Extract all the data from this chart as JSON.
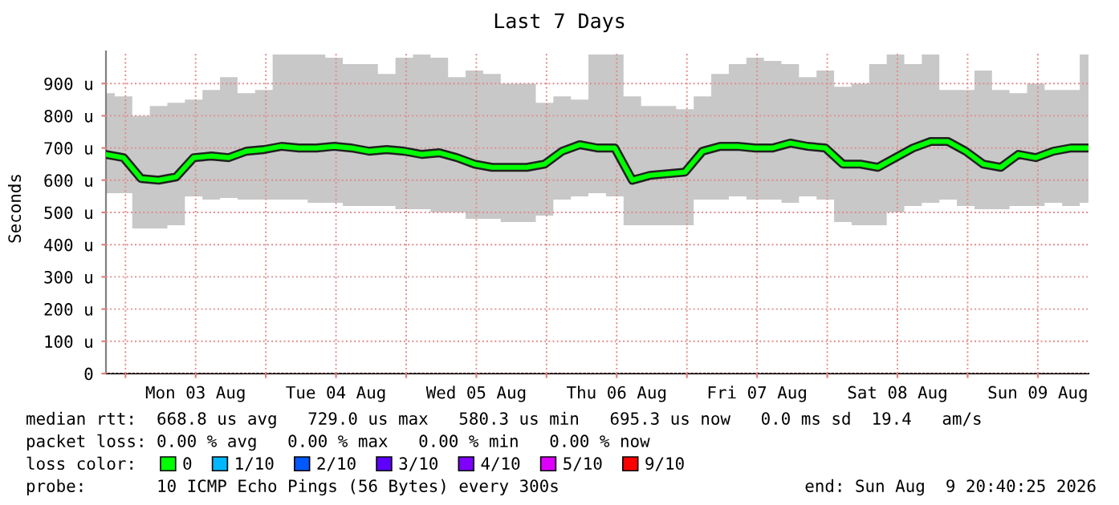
{
  "chart_data": {
    "type": "line",
    "title": "Last 7 Days",
    "ylabel": "Seconds",
    "x": [
      "2026-08-02T20:40",
      "2026-08-02T23:40",
      "2026-08-03T02:40",
      "2026-08-03T05:40",
      "2026-08-03T08:40",
      "2026-08-03T11:40",
      "2026-08-03T14:40",
      "2026-08-03T17:40",
      "2026-08-03T20:40",
      "2026-08-03T23:40",
      "2026-08-04T02:40",
      "2026-08-04T05:40",
      "2026-08-04T08:40",
      "2026-08-04T11:40",
      "2026-08-04T14:40",
      "2026-08-04T17:40",
      "2026-08-04T20:40",
      "2026-08-04T23:40",
      "2026-08-05T02:40",
      "2026-08-05T05:40",
      "2026-08-05T08:40",
      "2026-08-05T11:40",
      "2026-08-05T14:40",
      "2026-08-05T17:40",
      "2026-08-05T20:40",
      "2026-08-05T23:40",
      "2026-08-06T02:40",
      "2026-08-06T05:40",
      "2026-08-06T08:40",
      "2026-08-06T11:40",
      "2026-08-06T14:40",
      "2026-08-06T17:40",
      "2026-08-06T20:40",
      "2026-08-06T23:40",
      "2026-08-07T02:40",
      "2026-08-07T05:40",
      "2026-08-07T08:40",
      "2026-08-07T11:40",
      "2026-08-07T14:40",
      "2026-08-07T17:40",
      "2026-08-07T20:40",
      "2026-08-07T23:40",
      "2026-08-08T02:40",
      "2026-08-08T05:40",
      "2026-08-08T08:40",
      "2026-08-08T11:40",
      "2026-08-08T14:40",
      "2026-08-08T17:40",
      "2026-08-08T20:40",
      "2026-08-08T23:40",
      "2026-08-09T02:40",
      "2026-08-09T05:40",
      "2026-08-09T08:40",
      "2026-08-09T11:40",
      "2026-08-09T14:40",
      "2026-08-09T17:40",
      "2026-08-09T20:40"
    ],
    "series": [
      {
        "name": "0",
        "color": "#00ff00",
        "values": [
          680,
          670,
          605,
          600,
          610,
          670,
          675,
          670,
          690,
          695,
          705,
          700,
          700,
          705,
          700,
          690,
          695,
          690,
          680,
          685,
          670,
          650,
          640,
          640,
          640,
          650,
          690,
          710,
          700,
          700,
          600,
          615,
          620,
          625,
          690,
          705,
          705,
          700,
          700,
          715,
          705,
          700,
          650,
          650,
          640,
          670,
          700,
          720,
          720,
          690,
          650,
          640,
          680,
          670,
          690,
          700,
          700
        ],
        "upper": [
          870,
          860,
          800,
          830,
          840,
          850,
          880,
          920,
          870,
          880,
          990,
          990,
          990,
          980,
          960,
          960,
          930,
          980,
          990,
          980,
          920,
          940,
          930,
          900,
          900,
          840,
          860,
          850,
          990,
          990,
          860,
          830,
          830,
          820,
          860,
          930,
          960,
          980,
          970,
          960,
          920,
          940,
          890,
          900,
          960,
          990,
          960,
          990,
          880,
          880,
          940,
          880,
          870,
          900,
          880,
          880,
          990
        ],
        "lower": [
          560,
          560,
          450,
          450,
          460,
          550,
          540,
          545,
          540,
          540,
          540,
          540,
          530,
          530,
          520,
          520,
          520,
          510,
          510,
          500,
          500,
          480,
          480,
          470,
          470,
          490,
          540,
          550,
          560,
          550,
          460,
          460,
          460,
          460,
          540,
          540,
          550,
          540,
          540,
          530,
          550,
          540,
          470,
          460,
          460,
          500,
          520,
          530,
          540,
          520,
          510,
          510,
          520,
          520,
          530,
          520,
          530
        ]
      },
      {
        "name": "1/10",
        "color": "#00b8ff",
        "values": [
          null,
          null,
          null,
          null,
          null,
          null,
          null,
          null,
          null,
          null,
          null,
          null,
          null,
          null,
          null,
          null,
          null,
          null,
          null,
          null,
          null,
          null,
          null,
          null,
          null,
          null,
          null,
          null,
          null,
          null,
          null,
          null,
          null,
          null,
          null,
          null,
          null,
          null,
          null,
          null,
          null,
          null,
          null,
          null,
          null,
          null,
          null,
          null,
          null,
          null,
          null,
          null,
          null,
          null,
          null,
          null,
          null
        ]
      },
      {
        "name": "2/10",
        "color": "#0059ff",
        "values": [
          null,
          null,
          null,
          null,
          null,
          null,
          null,
          null,
          null,
          null,
          null,
          null,
          null,
          null,
          null,
          null,
          null,
          null,
          null,
          null,
          null,
          null,
          null,
          null,
          null,
          null,
          null,
          null,
          null,
          null,
          null,
          null,
          null,
          null,
          null,
          null,
          null,
          null,
          null,
          null,
          null,
          null,
          null,
          null,
          null,
          null,
          null,
          null,
          null,
          null,
          null,
          null,
          null,
          null,
          null,
          null,
          null
        ]
      },
      {
        "name": "3/10",
        "color": "#5e00ff",
        "values": [
          null,
          null,
          null,
          null,
          null,
          null,
          null,
          null,
          null,
          null,
          null,
          null,
          null,
          null,
          null,
          null,
          null,
          null,
          null,
          null,
          null,
          null,
          null,
          null,
          null,
          null,
          null,
          null,
          null,
          null,
          null,
          null,
          null,
          null,
          null,
          null,
          null,
          null,
          null,
          null,
          null,
          null,
          null,
          null,
          null,
          null,
          null,
          null,
          null,
          null,
          null,
          null,
          null,
          null,
          null,
          null,
          null
        ]
      },
      {
        "name": "4/10",
        "color": "#7e00ff",
        "values": [
          null,
          null,
          null,
          null,
          null,
          null,
          null,
          null,
          null,
          null,
          null,
          null,
          null,
          null,
          null,
          null,
          null,
          null,
          null,
          null,
          null,
          null,
          null,
          null,
          null,
          null,
          null,
          null,
          null,
          null,
          null,
          null,
          null,
          null,
          null,
          null,
          null,
          null,
          null,
          null,
          null,
          null,
          null,
          null,
          null,
          null,
          null,
          null,
          null,
          null,
          null,
          null,
          null,
          null,
          null,
          null,
          null
        ]
      },
      {
        "name": "5/10",
        "color": "#dd00ff",
        "values": [
          null,
          null,
          null,
          null,
          null,
          null,
          null,
          null,
          null,
          null,
          null,
          null,
          null,
          null,
          null,
          null,
          null,
          null,
          null,
          null,
          null,
          null,
          null,
          null,
          null,
          null,
          null,
          null,
          null,
          null,
          null,
          null,
          null,
          null,
          null,
          null,
          null,
          null,
          null,
          null,
          null,
          null,
          null,
          null,
          null,
          null,
          null,
          null,
          null,
          null,
          null,
          null,
          null,
          null,
          null,
          null,
          null
        ]
      },
      {
        "name": "9/10",
        "color": "#ff0000",
        "values": [
          null,
          null,
          null,
          null,
          null,
          null,
          null,
          null,
          null,
          null,
          null,
          null,
          null,
          null,
          null,
          null,
          null,
          null,
          null,
          null,
          null,
          null,
          null,
          null,
          null,
          null,
          null,
          null,
          null,
          null,
          null,
          null,
          null,
          null,
          null,
          null,
          null,
          null,
          null,
          null,
          null,
          null,
          null,
          null,
          null,
          null,
          null,
          null,
          null,
          null,
          null,
          null,
          null,
          null,
          null,
          null,
          null
        ]
      }
    ],
    "legend": "bottom",
    "legend_title": "loss color:",
    "grid": true,
    "xlim": [
      "2026-08-02T20:40",
      "2026-08-09T20:40"
    ],
    "xticks": [
      {
        "value": "2026-08-03T00:00",
        "label": null
      },
      {
        "value": "2026-08-03T12:00",
        "label": "Mon 03 Aug"
      },
      {
        "value": "2026-08-04T00:00",
        "label": null
      },
      {
        "value": "2026-08-04T12:00",
        "label": "Tue 04 Aug"
      },
      {
        "value": "2026-08-05T00:00",
        "label": null
      },
      {
        "value": "2026-08-05T12:00",
        "label": "Wed 05 Aug"
      },
      {
        "value": "2026-08-06T00:00",
        "label": null
      },
      {
        "value": "2026-08-06T12:00",
        "label": "Thu 06 Aug"
      },
      {
        "value": "2026-08-07T00:00",
        "label": null
      },
      {
        "value": "2026-08-07T12:00",
        "label": "Fri 07 Aug"
      },
      {
        "value": "2026-08-08T00:00",
        "label": null
      },
      {
        "value": "2026-08-08T12:00",
        "label": "Sat 08 Aug"
      },
      {
        "value": "2026-08-09T00:00",
        "label": null
      },
      {
        "value": "2026-08-09T12:00",
        "label": "Sun 09 Aug"
      }
    ],
    "ylim": [
      0,
      1000
    ],
    "yticks": [
      0,
      {
        "value": 100,
        "label": "100 u"
      },
      {
        "value": 200,
        "label": "200 u"
      },
      {
        "value": 300,
        "label": "300 u"
      },
      {
        "value": 400,
        "label": "400 u"
      },
      {
        "value": 500,
        "label": "500 u"
      },
      {
        "value": 600,
        "label": "600 u"
      },
      {
        "value": 700,
        "label": "700 u"
      },
      {
        "value": 800,
        "label": "800 u"
      },
      {
        "value": 900,
        "label": "900 u"
      }
    ],
    "annotations": [
      "median rtt:  668.8 us avg   729.0 us max   580.3 us min   695.3 us now   0.0 ms sd  19.4   am/s",
      "packet loss: 0.00 % avg   0.00 % max   0.00 % min   0.00 % now",
      "probe:       10 ICMP Echo Pings (56 Bytes) every 300s",
      "end: Sun Aug  9 20:40:25 2026"
    ]
  }
}
